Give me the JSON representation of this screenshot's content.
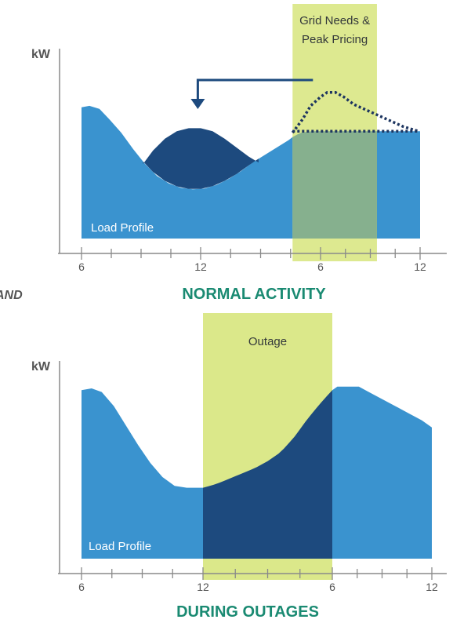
{
  "colors": {
    "load": "#3a93cf",
    "shifted": "#1d4a7e",
    "band": "#dbe88a",
    "band_overlap": "#86b08e",
    "axis": "#8a8a8a",
    "title": "#1a8a72",
    "arrow": "#1d4a7e",
    "dotted": "#1d3560"
  },
  "side_fragment": "AND",
  "chart_data": [
    {
      "type": "area",
      "title": "NORMAL ACTIVITY",
      "ylabel": "kW",
      "xlabel": "",
      "x_tick_labels": [
        "6",
        "12",
        "6",
        "12"
      ],
      "x_tick_hours": [
        6,
        12,
        18,
        24
      ],
      "xlim": [
        5.5,
        25
      ],
      "ylim": [
        0,
        100
      ],
      "band": {
        "label": "Grid Needs & Peak Pricing",
        "label_lines": [
          "Grid Needs &",
          "Peak Pricing"
        ],
        "start_hour": 16.6,
        "end_hour": 21.4
      },
      "series": [
        {
          "name": "Load Profile",
          "role": "base",
          "x": [
            6,
            6.4,
            6.9,
            7.4,
            8,
            8.6,
            9.2,
            9.8,
            10.4,
            11,
            11.6,
            12.2,
            12.8,
            13.4,
            14,
            14.6,
            15.2,
            15.8,
            16.4,
            16.6,
            17,
            17.6,
            18.2,
            18.8,
            19.4,
            20,
            20.6,
            21.2,
            21.8,
            22.4,
            23,
            23.6,
            24
          ],
          "y": [
            88,
            89,
            87,
            80,
            71,
            60,
            50,
            42,
            37,
            34,
            33,
            33.5,
            36,
            40,
            45,
            51,
            56,
            61,
            66,
            68,
            71,
            72,
            72,
            72,
            72,
            72,
            72,
            72,
            72,
            72,
            72,
            72,
            72
          ]
        },
        {
          "name": "",
          "role": "shifted",
          "x": [
            9.1,
            9.6,
            10.2,
            10.8,
            11.4,
            12,
            12.6,
            13.2,
            13.8,
            14.4,
            14.9
          ],
          "y": [
            50,
            59,
            67,
            72,
            74,
            74,
            72,
            67,
            61,
            55,
            51
          ]
        },
        {
          "name": "",
          "role": "avoided_peak",
          "x": [
            16.6,
            17.1,
            17.5,
            18,
            18.4,
            18.9,
            19.4,
            20,
            21,
            22,
            23,
            23.9
          ],
          "y": [
            71,
            80,
            89,
            95,
            98,
            98,
            95,
            90,
            85,
            80,
            75,
            72
          ]
        }
      ],
      "annotations": [
        {
          "type": "arrow",
          "from_hour": 16.6,
          "to_hour": 11.7
        }
      ]
    },
    {
      "type": "area",
      "title": "DURING OUTAGES",
      "ylabel": "kW",
      "xlabel": "",
      "x_tick_labels": [
        "6",
        "12",
        "6",
        "12"
      ],
      "x_tick_hours": [
        6,
        12,
        18,
        24
      ],
      "xlim": [
        5.5,
        25
      ],
      "ylim": [
        0,
        100
      ],
      "band": {
        "label": "Outage",
        "label_lines": [
          "Outage"
        ],
        "start_hour": 12,
        "end_hour": 18
      },
      "series": [
        {
          "name": "Load Profile",
          "role": "base",
          "x": [
            6,
            6.5,
            7,
            7.6,
            8.2,
            8.8,
            9.4,
            10,
            10.6,
            11.2,
            11.8,
            12,
            12.6,
            13.2,
            13.8,
            14.4,
            15,
            15.6,
            16.2,
            16.8,
            17.4,
            18,
            18.3,
            19,
            19.6,
            20.2,
            21,
            21.8,
            22.6,
            23.4,
            24
          ],
          "y": [
            95,
            96,
            94,
            86,
            75,
            64,
            54,
            46,
            41,
            40,
            40,
            40,
            42,
            45,
            48,
            51,
            55,
            60,
            68,
            78,
            87,
            95,
            97,
            97,
            97,
            94,
            90,
            86,
            82,
            78,
            74
          ]
        }
      ]
    }
  ]
}
